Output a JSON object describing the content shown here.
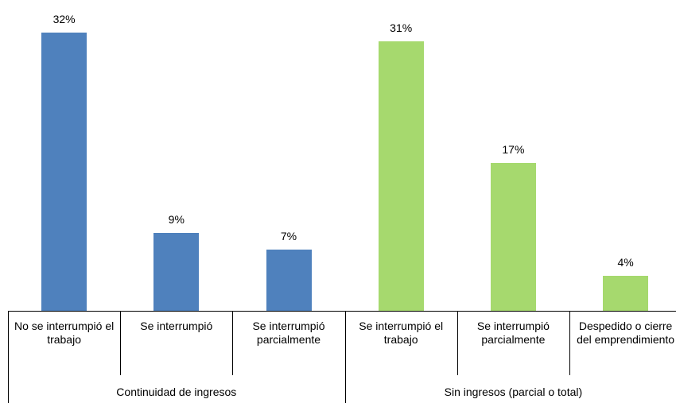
{
  "chart_data": {
    "type": "bar",
    "groups": [
      {
        "name": "Continuidad de ingresos",
        "color": "#4f81bd",
        "categories": [
          "No se interrumpió el trabajo",
          "Se interrumpió",
          "Se interrumpió parcialmente"
        ],
        "values": [
          32,
          9,
          7
        ],
        "value_labels": [
          "32%",
          "9%",
          "7%"
        ]
      },
      {
        "name": "Sin ingresos (parcial o total)",
        "color": "#a6d96e",
        "categories": [
          "Se interrumpió el trabajo",
          "Se interrumpió parcialmente",
          "Despedido o cierre del emprendimiento"
        ],
        "values": [
          31,
          17,
          4
        ],
        "value_labels": [
          "31%",
          "17%",
          "4%"
        ]
      }
    ]
  }
}
